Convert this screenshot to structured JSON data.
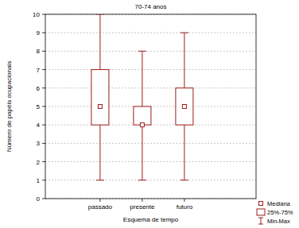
{
  "chart_data": {
    "type": "box",
    "title": "70-74 anos",
    "x_label": "Esquema de tempo",
    "y_label": "Número de papéis ocupacionais",
    "categories": [
      "passado",
      "presente",
      "futuro"
    ],
    "min": [
      1,
      1,
      1
    ],
    "q1": [
      4,
      4,
      4
    ],
    "median": [
      5,
      4,
      5
    ],
    "q3": [
      7,
      5,
      6
    ],
    "max": [
      10,
      8,
      9
    ],
    "color": "#9b1c1c",
    "ylim": [
      0,
      10
    ],
    "yticks": [
      0,
      1,
      2,
      3,
      4,
      5,
      6,
      7,
      8,
      9,
      10
    ],
    "grid": true,
    "legend": "lower right",
    "legend_entries": [
      "Mediana",
      "25%-75%",
      "Min-Max"
    ]
  }
}
